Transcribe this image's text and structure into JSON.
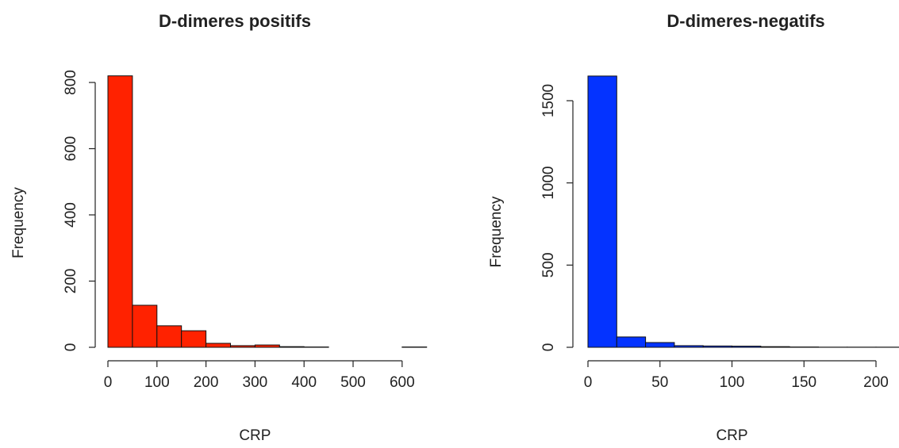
{
  "chart_data": [
    {
      "type": "histogram",
      "title": "D-dimeres positifs",
      "x_label": "CRP",
      "y_label": "Frequency",
      "bins": [
        0,
        50,
        100,
        150,
        200,
        250,
        300,
        350,
        400,
        450,
        500,
        550,
        600,
        650
      ],
      "values": [
        820,
        127,
        65,
        50,
        12,
        5,
        7,
        2,
        1,
        0,
        0,
        0,
        1
      ],
      "color": "#ff2200",
      "xlim": [
        0,
        650
      ],
      "ylim": [
        0,
        800
      ],
      "xticks": [
        0,
        100,
        200,
        300,
        400,
        500,
        600
      ],
      "yticks": [
        0,
        200,
        400,
        600,
        800
      ]
    },
    {
      "type": "histogram",
      "title": "D-dimeres-negatifs",
      "x_label": "CRP",
      "y_label": "Frequency",
      "bins": [
        0,
        20,
        40,
        60,
        80,
        100,
        120,
        140,
        160,
        180,
        200,
        220
      ],
      "values": [
        1650,
        63,
        29,
        10,
        8,
        7,
        4,
        2,
        1,
        1,
        1
      ],
      "color": "#0433ff",
      "xlim": [
        0,
        220
      ],
      "ylim": [
        0,
        1500
      ],
      "xticks": [
        0,
        50,
        100,
        150,
        200
      ],
      "yticks": [
        0,
        500,
        1000,
        1500
      ]
    }
  ]
}
